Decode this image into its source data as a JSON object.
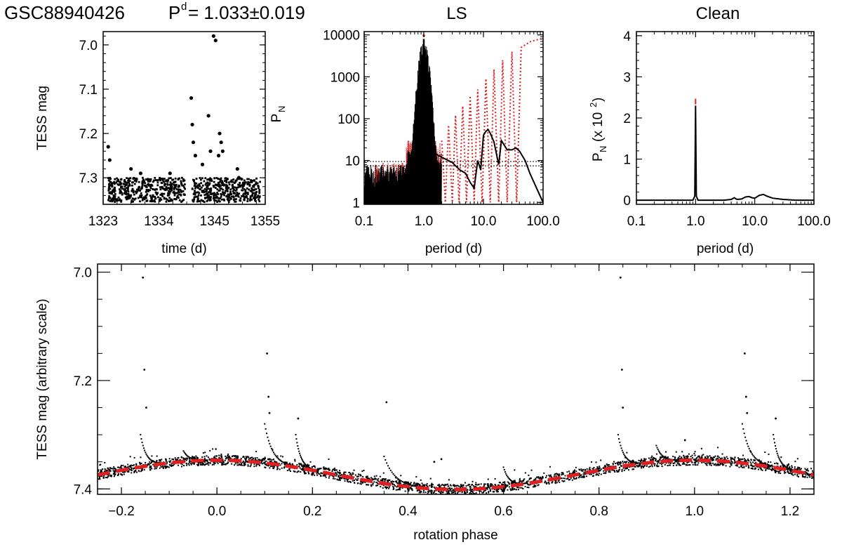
{
  "header": {
    "star": "GSC88940426",
    "period_label": "P",
    "period_sup": "d",
    "period_value": "= 1.033±0.019"
  },
  "chart_data": [
    {
      "id": "lightcurve",
      "type": "scatter",
      "title": "",
      "xlabel": "time (d)",
      "ylabel": "TESS mag",
      "xlim": [
        1323,
        1355
      ],
      "ylim": [
        7.36,
        6.97
      ],
      "xticks": [
        "1323",
        "1334",
        "1345",
        "1355"
      ],
      "yticks": [
        "7.0",
        "7.1",
        "7.2",
        "7.3"
      ],
      "gap": [
        1339.2,
        1340.6
      ],
      "baseline_mag": [
        7.3,
        7.355
      ],
      "flares": [
        {
          "t": 1324.0,
          "mag": 7.23
        },
        {
          "t": 1324.3,
          "mag": 7.26
        },
        {
          "t": 1328.5,
          "mag": 7.28
        },
        {
          "t": 1330.4,
          "mag": 7.29
        },
        {
          "t": 1336.2,
          "mag": 7.29
        },
        {
          "t": 1340.4,
          "mag": 7.12
        },
        {
          "t": 1340.6,
          "mag": 7.18
        },
        {
          "t": 1340.8,
          "mag": 7.22
        },
        {
          "t": 1341.2,
          "mag": 7.25
        },
        {
          "t": 1342.6,
          "mag": 7.27
        },
        {
          "t": 1343.8,
          "mag": 7.16
        },
        {
          "t": 1344.2,
          "mag": 7.24
        },
        {
          "t": 1344.8,
          "mag": 6.98
        },
        {
          "t": 1345.2,
          "mag": 6.99
        },
        {
          "t": 1345.8,
          "mag": 7.25
        },
        {
          "t": 1346.0,
          "mag": 7.2
        },
        {
          "t": 1346.3,
          "mag": 7.22
        },
        {
          "t": 1346.6,
          "mag": 7.24
        },
        {
          "t": 1349.5,
          "mag": 7.28
        },
        {
          "t": 1349.8,
          "mag": 7.3
        }
      ]
    },
    {
      "id": "ls",
      "type": "line",
      "title": "LS",
      "xlabel": "period (d)",
      "ylabel": "PN",
      "xscale": "log",
      "yscale": "log",
      "xlim": [
        0.1,
        100
      ],
      "ylim": [
        0.9,
        12000
      ],
      "xticks": [
        "0.1",
        "1.0",
        "10.0",
        "100.0"
      ],
      "yticks": [
        "1",
        "10",
        "100",
        "1000",
        "10000"
      ],
      "thresholds": [
        7.5,
        9.5
      ],
      "series": [
        {
          "name": "periodogram",
          "color": "#000000",
          "style": "solid",
          "x": [
            1.5,
            2,
            3,
            4,
            5,
            6,
            7,
            8,
            9,
            10,
            11,
            12,
            13,
            15,
            18,
            20,
            25,
            30,
            35,
            40,
            50,
            60,
            80,
            100
          ],
          "y": [
            15,
            12,
            9,
            6,
            5,
            3,
            2.2,
            10,
            6,
            40,
            50,
            55,
            45,
            28,
            8,
            30,
            18,
            18,
            20,
            17,
            10,
            5,
            2,
            1
          ]
        },
        {
          "name": "window",
          "color": "#e02020",
          "style": "dotted",
          "x": [
            2,
            2.3,
            2.6,
            3.0,
            3.4,
            3.9,
            4.5,
            5.2,
            6.0,
            7.0,
            8.0,
            9.5,
            11,
            13,
            15,
            18,
            21,
            25,
            30,
            36,
            43,
            52,
            62,
            75,
            90,
            100
          ],
          "y": [
            30,
            1,
            70,
            1,
            120,
            1,
            200,
            1,
            350,
            1,
            500,
            1,
            900,
            1,
            1500,
            1,
            2500,
            1,
            4000,
            1,
            5000,
            6000,
            7000,
            7500,
            8000,
            8000
          ]
        }
      ],
      "peak": {
        "x": 1.0,
        "y": 8000
      }
    },
    {
      "id": "clean",
      "type": "line",
      "title": "Clean",
      "xlabel": "period (d)",
      "ylabel": "PN (x 102)",
      "xscale": "log",
      "xlim": [
        0.1,
        100
      ],
      "ylim": [
        -0.1,
        4.1
      ],
      "xticks": [
        "0.1",
        "1.0",
        "10.0",
        "100.0"
      ],
      "yticks": [
        "0",
        "1",
        "2",
        "3",
        "4"
      ],
      "series": [
        {
          "name": "clean",
          "color": "#000000",
          "x": [
            0.1,
            0.5,
            0.9,
            0.97,
            1.0,
            1.03,
            1.1,
            2,
            3,
            4,
            4.5,
            5,
            6,
            7,
            8,
            9,
            10,
            12,
            14,
            16,
            20,
            30,
            50,
            100
          ],
          "y": [
            0,
            0,
            0,
            0.1,
            2.3,
            0.1,
            0,
            0,
            0,
            0.02,
            0.06,
            0.02,
            0.03,
            0.08,
            0.09,
            0.06,
            0.05,
            0.12,
            0.14,
            0.1,
            0.05,
            0.02,
            0,
            0
          ]
        }
      ],
      "peak_marker": {
        "x": 1.0,
        "y": 2.4,
        "color": "#e02020"
      }
    },
    {
      "id": "phase",
      "type": "scatter",
      "xlabel": "rotation phase",
      "ylabel": "TESS mag (arbitrary scale)",
      "xlim": [
        -0.25,
        1.25
      ],
      "ylim": [
        7.41,
        6.985
      ],
      "xticks": [
        "−0.2",
        "0.0",
        "0.2",
        "0.4",
        "0.6",
        "0.8",
        "1.0",
        "1.2"
      ],
      "yticks": [
        "7.0",
        "7.2",
        "7.4"
      ],
      "fit": {
        "mean": 7.374,
        "amplitude": 0.027,
        "color": "#e02020"
      },
      "outliers": [
        {
          "x": -0.155,
          "y": 7.01
        },
        {
          "x": -0.152,
          "y": 7.18
        },
        {
          "x": -0.148,
          "y": 7.25
        },
        {
          "x": 0.105,
          "y": 7.15
        },
        {
          "x": 0.108,
          "y": 7.23
        },
        {
          "x": 0.11,
          "y": 7.26
        },
        {
          "x": 0.355,
          "y": 7.24
        },
        {
          "x": 0.845,
          "y": 7.01
        },
        {
          "x": 0.848,
          "y": 7.18
        },
        {
          "x": 0.85,
          "y": 7.25
        },
        {
          "x": 1.105,
          "y": 7.15
        },
        {
          "x": 1.108,
          "y": 7.23
        },
        {
          "x": 1.11,
          "y": 7.26
        },
        {
          "x": 0.17,
          "y": 7.27
        },
        {
          "x": 1.17,
          "y": 7.27
        },
        {
          "x": 0.455,
          "y": 7.35
        },
        {
          "x": 0.47,
          "y": 7.345
        },
        {
          "x": 0.98,
          "y": 7.31
        }
      ],
      "decays": [
        {
          "x0": -0.16,
          "y0": 7.3,
          "len": 0.05
        },
        {
          "x0": 0.1,
          "y0": 7.28,
          "len": 0.06
        },
        {
          "x0": 0.165,
          "y0": 7.3,
          "len": 0.04
        },
        {
          "x0": 0.35,
          "y0": 7.34,
          "len": 0.08
        },
        {
          "x0": 0.84,
          "y0": 7.3,
          "len": 0.05
        },
        {
          "x0": 1.1,
          "y0": 7.28,
          "len": 0.06
        },
        {
          "x0": 1.165,
          "y0": 7.3,
          "len": 0.04
        },
        {
          "x0": 0.92,
          "y0": 7.32,
          "len": 0.05
        },
        {
          "x0": -0.07,
          "y0": 7.33,
          "len": 0.05
        },
        {
          "x0": 0.6,
          "y0": 7.36,
          "len": 0.05
        }
      ]
    }
  ]
}
